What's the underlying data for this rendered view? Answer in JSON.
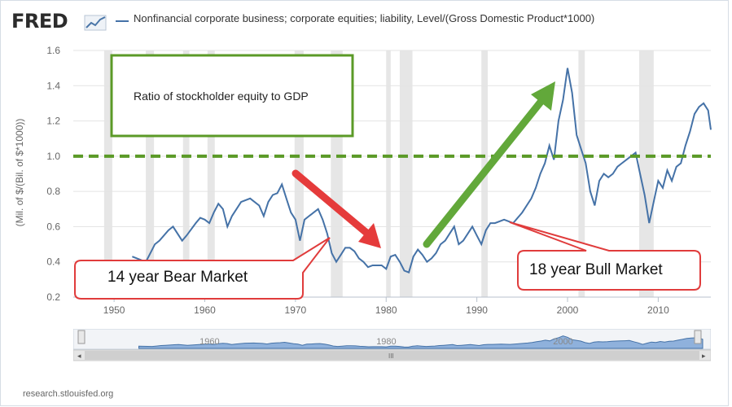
{
  "brand": {
    "logo_text": "FRED",
    "logo_icon": "trend-graph-icon"
  },
  "legend": {
    "series_label": "Nonfinancial corporate business; corporate equities; liability, Level/(Gross Domestic Product*1000)"
  },
  "axis": {
    "ylabel": "(Mil. of $/(Bil. of $*1000))"
  },
  "credit": "research.stlouisfed.org",
  "colors": {
    "series": "#4572a7",
    "recession": "#e6e6e6",
    "reference_line": "#5b9a27",
    "bear_arrow": "#e53b3b",
    "bull_arrow": "#62a83a",
    "callout_border": "#e03c3c",
    "textbox_border": "#5b9a27",
    "navigator_fill": "#8fb1dc"
  },
  "annotations": {
    "textbox": "Ratio of stockholder equity to GDP",
    "bear_callout": "14 year Bear Market",
    "bull_callout": "18 year Bull Market"
  },
  "navigator": {
    "labels": [
      "1960",
      "1980",
      "2000"
    ],
    "scroll_left_icon": "chevron-left-icon",
    "scroll_right_icon": "chevron-right-icon",
    "grip_icon": "grip-icon"
  },
  "chart_data": {
    "type": "line",
    "xlim": [
      1945.5,
      2015.8
    ],
    "ylim": [
      0.2,
      1.6
    ],
    "x_ticks": [
      1950,
      1960,
      1970,
      1980,
      1990,
      2000,
      2010
    ],
    "y_ticks": [
      0.2,
      0.4,
      0.6,
      0.8,
      1.0,
      1.2,
      1.4,
      1.6
    ],
    "y_tick_labels": [
      "0.2",
      "0.4",
      "0.6",
      "0.8",
      "1.0",
      "1.2",
      "1.4",
      "1.6"
    ],
    "grid": true,
    "reference_line": 1.0,
    "recessions": [
      [
        1948.9,
        1949.8
      ],
      [
        1953.5,
        1954.4
      ],
      [
        1957.6,
        1958.3
      ],
      [
        1960.3,
        1961.1
      ],
      [
        1969.9,
        1970.9
      ],
      [
        1973.9,
        1975.2
      ],
      [
        1980.0,
        1980.5
      ],
      [
        1981.5,
        1982.9
      ],
      [
        1990.5,
        1991.2
      ],
      [
        2001.2,
        2001.9
      ],
      [
        2007.9,
        2009.5
      ]
    ],
    "series": [
      {
        "values": [
          [
            1952.0,
            0.43
          ],
          [
            1953.0,
            0.41
          ],
          [
            1953.5,
            0.4
          ],
          [
            1954.0,
            0.45
          ],
          [
            1954.5,
            0.5
          ],
          [
            1955.0,
            0.52
          ],
          [
            1956.0,
            0.58
          ],
          [
            1956.5,
            0.6
          ],
          [
            1957.5,
            0.52
          ],
          [
            1958.0,
            0.55
          ],
          [
            1959.0,
            0.62
          ],
          [
            1959.5,
            0.65
          ],
          [
            1960.0,
            0.64
          ],
          [
            1960.5,
            0.62
          ],
          [
            1961.0,
            0.68
          ],
          [
            1961.5,
            0.73
          ],
          [
            1962.0,
            0.7
          ],
          [
            1962.5,
            0.6
          ],
          [
            1963.0,
            0.66
          ],
          [
            1964.0,
            0.74
          ],
          [
            1965.0,
            0.76
          ],
          [
            1966.0,
            0.72
          ],
          [
            1966.5,
            0.66
          ],
          [
            1967.0,
            0.74
          ],
          [
            1967.5,
            0.78
          ],
          [
            1968.0,
            0.79
          ],
          [
            1968.5,
            0.84
          ],
          [
            1969.0,
            0.76
          ],
          [
            1969.5,
            0.68
          ],
          [
            1970.0,
            0.64
          ],
          [
            1970.5,
            0.52
          ],
          [
            1971.0,
            0.64
          ],
          [
            1971.5,
            0.66
          ],
          [
            1972.0,
            0.68
          ],
          [
            1972.5,
            0.7
          ],
          [
            1973.0,
            0.64
          ],
          [
            1973.5,
            0.56
          ],
          [
            1974.0,
            0.45
          ],
          [
            1974.5,
            0.4
          ],
          [
            1975.0,
            0.44
          ],
          [
            1975.5,
            0.48
          ],
          [
            1976.0,
            0.48
          ],
          [
            1976.5,
            0.46
          ],
          [
            1977.0,
            0.42
          ],
          [
            1977.5,
            0.4
          ],
          [
            1978.0,
            0.37
          ],
          [
            1978.5,
            0.38
          ],
          [
            1979.0,
            0.38
          ],
          [
            1979.5,
            0.38
          ],
          [
            1980.0,
            0.36
          ],
          [
            1980.5,
            0.43
          ],
          [
            1981.0,
            0.44
          ],
          [
            1981.5,
            0.4
          ],
          [
            1982.0,
            0.35
          ],
          [
            1982.5,
            0.34
          ],
          [
            1983.0,
            0.43
          ],
          [
            1983.5,
            0.47
          ],
          [
            1984.0,
            0.44
          ],
          [
            1984.5,
            0.4
          ],
          [
            1985.0,
            0.42
          ],
          [
            1985.5,
            0.45
          ],
          [
            1986.0,
            0.5
          ],
          [
            1986.5,
            0.52
          ],
          [
            1987.0,
            0.56
          ],
          [
            1987.5,
            0.6
          ],
          [
            1988.0,
            0.5
          ],
          [
            1988.5,
            0.52
          ],
          [
            1989.0,
            0.56
          ],
          [
            1989.5,
            0.6
          ],
          [
            1990.0,
            0.55
          ],
          [
            1990.5,
            0.5
          ],
          [
            1991.0,
            0.58
          ],
          [
            1991.5,
            0.62
          ],
          [
            1992.0,
            0.62
          ],
          [
            1993.0,
            0.64
          ],
          [
            1994.0,
            0.62
          ],
          [
            1995.0,
            0.68
          ],
          [
            1996.0,
            0.76
          ],
          [
            1996.5,
            0.82
          ],
          [
            1997.0,
            0.9
          ],
          [
            1997.5,
            0.96
          ],
          [
            1998.0,
            1.06
          ],
          [
            1998.5,
            0.98
          ],
          [
            1999.0,
            1.2
          ],
          [
            1999.5,
            1.32
          ],
          [
            2000.0,
            1.5
          ],
          [
            2000.5,
            1.36
          ],
          [
            2001.0,
            1.12
          ],
          [
            2001.5,
            1.04
          ],
          [
            2002.0,
            0.96
          ],
          [
            2002.5,
            0.8
          ],
          [
            2003.0,
            0.72
          ],
          [
            2003.5,
            0.86
          ],
          [
            2004.0,
            0.9
          ],
          [
            2004.5,
            0.88
          ],
          [
            2005.0,
            0.9
          ],
          [
            2005.5,
            0.94
          ],
          [
            2006.0,
            0.96
          ],
          [
            2006.5,
            0.98
          ],
          [
            2007.0,
            1.0
          ],
          [
            2007.5,
            1.02
          ],
          [
            2008.0,
            0.9
          ],
          [
            2008.5,
            0.78
          ],
          [
            2009.0,
            0.62
          ],
          [
            2009.5,
            0.74
          ],
          [
            2010.0,
            0.86
          ],
          [
            2010.5,
            0.82
          ],
          [
            2011.0,
            0.92
          ],
          [
            2011.5,
            0.86
          ],
          [
            2012.0,
            0.94
          ],
          [
            2012.5,
            0.96
          ],
          [
            2013.0,
            1.06
          ],
          [
            2013.5,
            1.14
          ],
          [
            2014.0,
            1.24
          ],
          [
            2014.5,
            1.28
          ],
          [
            2015.0,
            1.3
          ],
          [
            2015.5,
            1.26
          ],
          [
            2015.8,
            1.15
          ]
        ]
      }
    ]
  }
}
